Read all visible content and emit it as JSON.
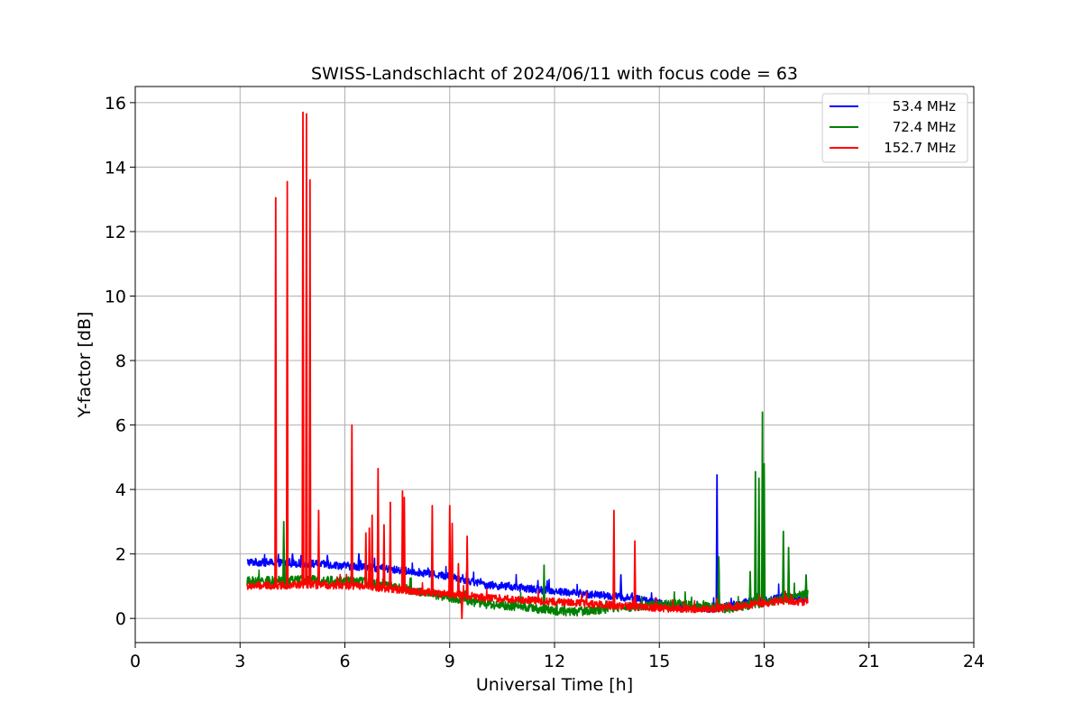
{
  "chart_data": {
    "type": "line",
    "title": "SWISS-Landschlacht of 2024/06/11 with focus code = 63",
    "xlabel": "Universal Time [h]",
    "ylabel": "Y-factor [dB]",
    "xlim": [
      0,
      24
    ],
    "ylim": [
      -0.75,
      16.5
    ],
    "xticks": [
      0,
      3,
      6,
      9,
      12,
      15,
      18,
      21,
      24
    ],
    "xtick_labels": [
      "0",
      "3",
      "6",
      "9",
      "12",
      "15",
      "18",
      "21",
      "24"
    ],
    "yticks": [
      0,
      2,
      4,
      6,
      8,
      10,
      12,
      14,
      16
    ],
    "ytick_labels": [
      "0",
      "2",
      "4",
      "6",
      "8",
      "10",
      "12",
      "14",
      "16"
    ],
    "grid": true,
    "legend_position": "top-right",
    "series": [
      {
        "name": "53.4 MHz",
        "color": "#0000ff",
        "x_range": [
          3.2,
          19.25
        ],
        "baseline": [
          [
            3.2,
            1.75
          ],
          [
            5.0,
            1.7
          ],
          [
            6.5,
            1.6
          ],
          [
            8.0,
            1.45
          ],
          [
            9.0,
            1.3
          ],
          [
            10.0,
            1.05
          ],
          [
            11.5,
            0.9
          ],
          [
            13.0,
            0.75
          ],
          [
            14.5,
            0.6
          ],
          [
            15.5,
            0.35
          ],
          [
            16.5,
            0.3
          ],
          [
            17.5,
            0.5
          ],
          [
            18.5,
            0.65
          ],
          [
            19.25,
            0.6
          ]
        ],
        "noise": 0.12,
        "spikes": [
          [
            4.5,
            2.0
          ],
          [
            5.5,
            1.95
          ],
          [
            6.4,
            2.0
          ],
          [
            16.65,
            4.45
          ],
          [
            16.7,
            1.9
          ],
          [
            13.9,
            1.35
          ]
        ]
      },
      {
        "name": "72.4 MHz",
        "color": "#008000",
        "x_range": [
          3.2,
          19.25
        ],
        "baseline": [
          [
            3.2,
            1.15
          ],
          [
            5.0,
            1.2
          ],
          [
            6.5,
            1.15
          ],
          [
            8.0,
            0.85
          ],
          [
            9.0,
            0.65
          ],
          [
            10.0,
            0.45
          ],
          [
            11.5,
            0.3
          ],
          [
            12.5,
            0.2
          ],
          [
            14.0,
            0.35
          ],
          [
            15.5,
            0.45
          ],
          [
            17.0,
            0.3
          ],
          [
            18.0,
            0.5
          ],
          [
            19.25,
            0.75
          ]
        ],
        "noise": 0.14,
        "spikes": [
          [
            4.25,
            3.0
          ],
          [
            11.7,
            1.65
          ],
          [
            16.7,
            1.9
          ],
          [
            17.6,
            1.45
          ],
          [
            17.75,
            4.55
          ],
          [
            17.85,
            4.35
          ],
          [
            17.95,
            6.4
          ],
          [
            18.0,
            4.8
          ],
          [
            18.55,
            2.7
          ],
          [
            18.7,
            2.2
          ],
          [
            19.2,
            1.35
          ]
        ]
      },
      {
        "name": "152.7 MHz",
        "color": "#ff0000",
        "x_range": [
          3.2,
          19.25
        ],
        "baseline": [
          [
            3.2,
            1.0
          ],
          [
            5.0,
            1.05
          ],
          [
            6.5,
            1.0
          ],
          [
            8.0,
            0.85
          ],
          [
            9.0,
            0.75
          ],
          [
            10.0,
            0.65
          ],
          [
            11.5,
            0.55
          ],
          [
            13.0,
            0.45
          ],
          [
            14.5,
            0.35
          ],
          [
            15.5,
            0.3
          ],
          [
            16.5,
            0.3
          ],
          [
            17.5,
            0.4
          ],
          [
            18.5,
            0.55
          ],
          [
            19.25,
            0.5
          ]
        ],
        "noise": 0.12,
        "spikes": [
          [
            4.02,
            13.05
          ],
          [
            4.35,
            13.55
          ],
          [
            4.8,
            15.7
          ],
          [
            4.9,
            15.65
          ],
          [
            5.0,
            13.6
          ],
          [
            5.25,
            3.35
          ],
          [
            6.2,
            6.0
          ],
          [
            6.6,
            2.65
          ],
          [
            6.7,
            2.8
          ],
          [
            6.78,
            3.2
          ],
          [
            6.95,
            4.65
          ],
          [
            7.12,
            2.9
          ],
          [
            7.3,
            3.6
          ],
          [
            7.65,
            3.95
          ],
          [
            7.7,
            3.75
          ],
          [
            8.5,
            3.5
          ],
          [
            9.0,
            3.5
          ],
          [
            9.07,
            2.95
          ],
          [
            9.25,
            1.7
          ],
          [
            9.5,
            2.55
          ],
          [
            13.7,
            3.35
          ],
          [
            14.3,
            2.4
          ],
          [
            9.35,
            0.0
          ]
        ]
      }
    ]
  }
}
